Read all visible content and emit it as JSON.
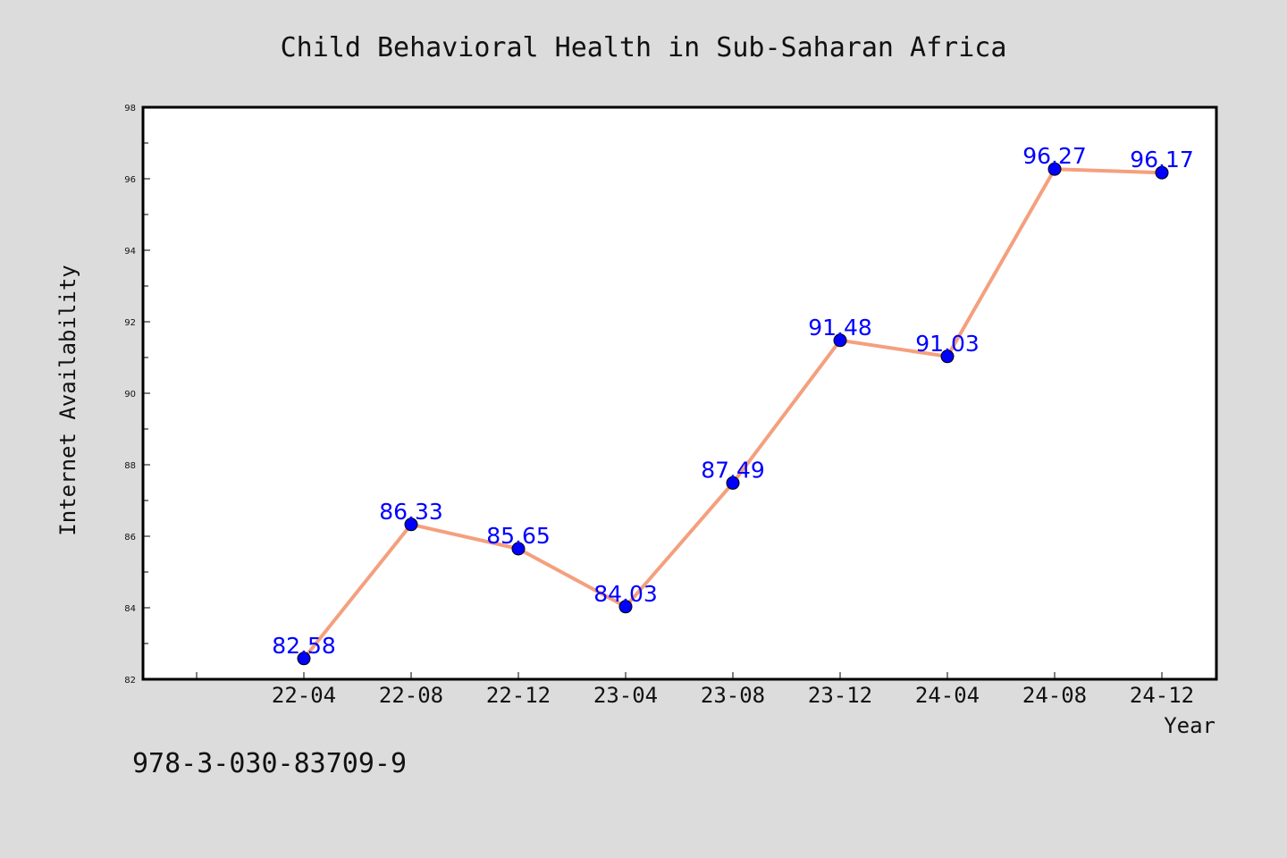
{
  "chart_data": {
    "type": "line",
    "title": "Child Behavioral Health in Sub-Saharan Africa",
    "xlabel": "Year",
    "ylabel": "Internet Availability",
    "categories": [
      "22-04",
      "22-08",
      "22-12",
      "23-04",
      "23-08",
      "23-12",
      "24-04",
      "24-08",
      "24-12"
    ],
    "series": [
      {
        "values": [
          82.58,
          86.33,
          85.65,
          84.03,
          87.49,
          91.48,
          91.03,
          96.27,
          96.17
        ]
      }
    ],
    "data_labels": [
      "82.58",
      "86.33",
      "85.65",
      "84.03",
      "87.49",
      "91.48",
      "91.03",
      "96.27",
      "96.17"
    ],
    "ylim": [
      82,
      98
    ],
    "yticks": [
      "82",
      "84",
      "86",
      "88",
      "90",
      "92",
      "94",
      "96",
      "98"
    ],
    "grid": false,
    "legend": "none",
    "line_color": "#f4a07e",
    "marker_color": "#0000ff",
    "label_color": "#0000ff"
  },
  "annotation": {
    "isbn": "978-3-030-83709-9"
  }
}
